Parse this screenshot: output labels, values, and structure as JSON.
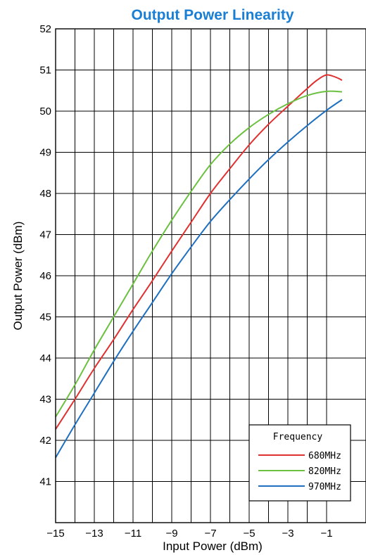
{
  "chart_data": {
    "type": "line",
    "title": "Output Power Linearity",
    "xlabel": "Input Power (dBm)",
    "ylabel": "Output Power (dBm)",
    "xlim": [
      -15,
      -0.2
    ],
    "ylim": [
      40,
      52
    ],
    "x_tick_values": [
      -15,
      -13,
      -11,
      -9,
      -7,
      -5,
      -3,
      -1
    ],
    "x_tick_labels": [
      "−15",
      "−13",
      "−11",
      "−9",
      "−7",
      "−5",
      "−3",
      "−1"
    ],
    "y_ticks": [
      41,
      42,
      43,
      44,
      45,
      46,
      47,
      48,
      49,
      50,
      51,
      52
    ],
    "grid": true,
    "grid_x_step": 1,
    "legend_title": "Frequency",
    "legend_position": "bottom-right",
    "title_color": "#1a7fd4",
    "series": [
      {
        "name": "680MHz",
        "color": "#e03131",
        "x": [
          -15,
          -14,
          -13,
          -12,
          -11,
          -10,
          -9,
          -8,
          -7,
          -6,
          -5,
          -4,
          -3,
          -2,
          -1.5,
          -1,
          -0.5,
          -0.2
        ],
        "y": [
          42.27,
          43.0,
          43.75,
          44.45,
          45.18,
          45.88,
          46.6,
          47.3,
          48.0,
          48.6,
          49.18,
          49.68,
          50.12,
          50.55,
          50.75,
          50.88,
          50.82,
          50.75
        ]
      },
      {
        "name": "820MHz",
        "color": "#6cc040",
        "x": [
          -15,
          -14,
          -13,
          -12,
          -11,
          -10,
          -9,
          -8,
          -7,
          -6,
          -5,
          -4,
          -3,
          -2,
          -1,
          -0.2
        ],
        "y": [
          42.57,
          43.35,
          44.2,
          45.0,
          45.8,
          46.6,
          47.35,
          48.05,
          48.7,
          49.2,
          49.6,
          49.92,
          50.18,
          50.38,
          50.48,
          50.47
        ]
      },
      {
        "name": "970MHz",
        "color": "#1f6fc0",
        "x": [
          -15,
          -14,
          -13,
          -12,
          -11,
          -10,
          -9,
          -8,
          -7,
          -6,
          -5,
          -4,
          -3,
          -2,
          -1,
          -0.2
        ],
        "y": [
          41.58,
          42.38,
          43.15,
          43.92,
          44.65,
          45.35,
          46.05,
          46.7,
          47.32,
          47.85,
          48.35,
          48.82,
          49.25,
          49.65,
          50.02,
          50.28
        ]
      }
    ]
  }
}
